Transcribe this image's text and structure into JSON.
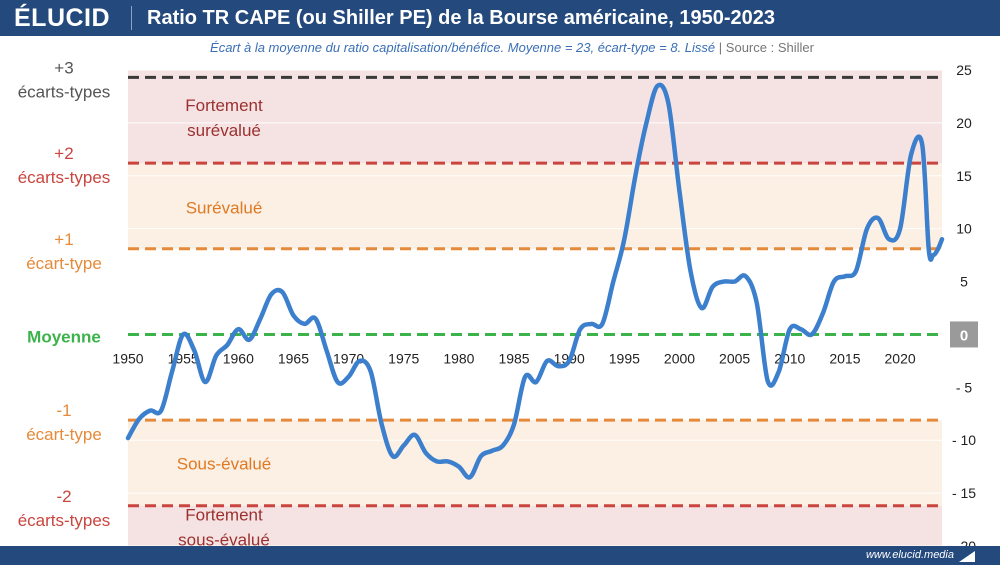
{
  "brand": {
    "logo": "ÉLUCID",
    "url": "www.elucid.media"
  },
  "chart_data": {
    "type": "line",
    "title": "Ratio TR CAPE (ou Shiller PE) de la Bourse américaine, 1950-2023",
    "subtitle": "Écart à la moyenne du ratio capitalisation/bénéfice. Moyenne = 23, écart-type = 8. Lissé",
    "source": "Source : Shiller",
    "xlim": [
      1950,
      2023.8
    ],
    "ylim": [
      -20,
      25
    ],
    "x_ticks": [
      1950,
      1955,
      1960,
      1965,
      1970,
      1975,
      1980,
      1985,
      1990,
      1995,
      2000,
      2005,
      2010,
      2015,
      2020
    ],
    "y_ticks": [
      {
        "value": 25,
        "label": "25"
      },
      {
        "value": 20,
        "label": "20"
      },
      {
        "value": 15,
        "label": "15"
      },
      {
        "value": 10,
        "label": "10"
      },
      {
        "value": 5,
        "label": "5"
      },
      {
        "value": 0,
        "label": "0"
      },
      {
        "value": -5,
        "label": "- 5"
      },
      {
        "value": -10,
        "label": "- 10"
      },
      {
        "value": -15,
        "label": "- 15"
      },
      {
        "value": -20,
        "label": "- 20"
      }
    ],
    "reference_lines": [
      {
        "value": 24.3,
        "label": [
          "+3",
          "écarts-types"
        ],
        "color": "#3a3a3a",
        "label_color": "#555555"
      },
      {
        "value": 16.2,
        "label": [
          "+2",
          "écarts-types"
        ],
        "color": "#c9453e",
        "label_color": "#c9453e"
      },
      {
        "value": 8.1,
        "label": [
          "+1",
          "écart-type"
        ],
        "color": "#e58a3a",
        "label_color": "#e58a3a"
      },
      {
        "value": 0,
        "label": [
          "Moyenne"
        ],
        "color": "#3cb34a",
        "label_color": "#3cb34a"
      },
      {
        "value": -8.1,
        "label": [
          "-1",
          "écart-type"
        ],
        "color": "#e58a3a",
        "label_color": "#e58a3a"
      },
      {
        "value": -16.2,
        "label": [
          "-2",
          "écarts-types"
        ],
        "color": "#c9453e",
        "label_color": "#c9453e"
      }
    ],
    "zones": [
      {
        "from": 16.2,
        "to": 25,
        "color": "#f5e3e3",
        "label": [
          "Fortement",
          "surévalué"
        ],
        "label_color": "#9c3030",
        "label_y": 20.5
      },
      {
        "from": 8.1,
        "to": 16.2,
        "color": "#fcefe4",
        "label": [
          "Surévalué"
        ],
        "label_color": "#e07a22",
        "label_y": 12
      },
      {
        "from": -16.2,
        "to": -8.1,
        "color": "#fcefe4",
        "label": [
          "Sous-évalué"
        ],
        "label_color": "#e07a22",
        "label_y": -12.2
      },
      {
        "from": -20,
        "to": -16.2,
        "color": "#f5e3e3",
        "label": [
          "Fortement",
          "sous-évalué"
        ],
        "label_color": "#9c3030",
        "label_y": -18.2
      }
    ],
    "series": [
      {
        "color": "#3b7fcd",
        "x": [
          1950,
          1951,
          1952,
          1953,
          1954,
          1955,
          1956,
          1957,
          1958,
          1959,
          1960,
          1961,
          1962,
          1963,
          1964,
          1965,
          1966,
          1967,
          1968,
          1969,
          1970,
          1971,
          1972,
          1973,
          1974,
          1975,
          1976,
          1977,
          1978,
          1979,
          1980,
          1981,
          1982,
          1983,
          1984,
          1985,
          1986,
          1987,
          1988,
          1989,
          1990,
          1991,
          1992,
          1993,
          1994,
          1995,
          1996,
          1997,
          1998,
          1999,
          2000,
          2001,
          2002,
          2003,
          2004,
          2005,
          2006,
          2007,
          2008,
          2009,
          2010,
          2011,
          2012,
          2013,
          2014,
          2015,
          2016,
          2017,
          2018,
          2019,
          2020,
          2021,
          2022,
          2022.6,
          2023,
          2023.4,
          2023.8
        ],
        "y": [
          -9.8,
          -8,
          -7.2,
          -7.2,
          -3.5,
          0,
          -1.5,
          -4.5,
          -2,
          -1,
          0.5,
          -0.5,
          1.5,
          3.8,
          4,
          1.8,
          1,
          1.5,
          -1.5,
          -4.5,
          -4,
          -2.5,
          -3.5,
          -8.5,
          -11.5,
          -10.5,
          -9.5,
          -11.2,
          -12,
          -12,
          -12.5,
          -13.5,
          -11.5,
          -11,
          -10.5,
          -8.5,
          -4,
          -4.5,
          -2.5,
          -3,
          -2.5,
          0.5,
          1,
          1,
          5,
          9,
          15,
          20,
          23.5,
          21.8,
          13.5,
          6,
          2.5,
          4.5,
          5,
          5,
          5.5,
          3,
          -4.4,
          -3.5,
          0.5,
          0.5,
          0,
          2,
          5,
          5.5,
          6,
          10,
          11,
          9,
          10,
          17,
          18,
          8,
          7.5,
          8,
          9
        ]
      }
    ]
  }
}
